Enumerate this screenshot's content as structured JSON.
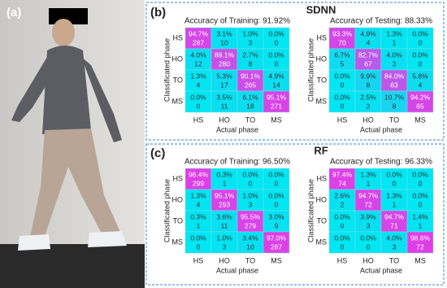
{
  "figure": {
    "panel_labels": [
      "(a)",
      "(b)",
      "(c)"
    ],
    "group_titles": [
      "SDNN",
      "RF"
    ]
  },
  "chart_data": [
    {
      "type": "heatmap",
      "title": "Accuracy of Training: 91.92%",
      "xlabel": "Actual phase",
      "ylabel": "Classificated phase",
      "x_categories": [
        "HS",
        "HO",
        "TO",
        "MS"
      ],
      "y_categories": [
        "HS",
        "HO",
        "TO",
        "MS"
      ],
      "zlim": [
        0,
        100
      ],
      "colors": [
        "#00e6f2",
        "#e23ce6"
      ],
      "values": [
        [
          94.7,
          3.1,
          1.0,
          0.0
        ],
        [
          4.0,
          88.1,
          2.7,
          0.0
        ],
        [
          1.3,
          5.3,
          90.1,
          4.9
        ],
        [
          0.0,
          3.5,
          6.1,
          95.1
        ]
      ],
      "value_labels": [
        [
          "94.7%",
          "3.1%",
          "1.0%",
          "0.0%"
        ],
        [
          "4.0%",
          "88.1%",
          "2.7%",
          "0.0%"
        ],
        [
          "1.3%",
          "5.3%",
          "90.1%",
          "4.9%"
        ],
        [
          "0.0%",
          "3.5%",
          "6.1%",
          "95.1%"
        ]
      ],
      "counts": [
        [
          287,
          10,
          3,
          0
        ],
        [
          12,
          280,
          8,
          0
        ],
        [
          4,
          17,
          265,
          14
        ],
        [
          0,
          11,
          18,
          271
        ]
      ]
    },
    {
      "type": "heatmap",
      "title": "Accuracy of Testing: 88.33%",
      "xlabel": "Actual phase",
      "ylabel": "Classificated phase",
      "x_categories": [
        "HS",
        "HO",
        "TO",
        "MS"
      ],
      "y_categories": [
        "HS",
        "HO",
        "TO",
        "MS"
      ],
      "zlim": [
        0,
        100
      ],
      "colors": [
        "#00e6f2",
        "#e23ce6"
      ],
      "values": [
        [
          93.3,
          4.9,
          1.3,
          0.0
        ],
        [
          6.7,
          82.7,
          4.0,
          0.0
        ],
        [
          0.0,
          9.9,
          84.0,
          5.8
        ],
        [
          0.0,
          2.5,
          10.7,
          94.2
        ]
      ],
      "value_labels": [
        [
          "93.3%",
          "4.9%",
          "1.3%",
          "0.0%"
        ],
        [
          "6.7%",
          "82.7%",
          "4.0%",
          "0.0%"
        ],
        [
          "0.0%",
          "9.9%",
          "84.0%",
          "5.8%"
        ],
        [
          "0.0%",
          "2.5%",
          "10.7%",
          "94.2%"
        ]
      ],
      "counts": [
        [
          70,
          4,
          1,
          0
        ],
        [
          5,
          67,
          3,
          0
        ],
        [
          0,
          8,
          63,
          4
        ],
        [
          0,
          2,
          8,
          65
        ]
      ]
    },
    {
      "type": "heatmap",
      "title": "Accuracy of Training: 96.50%",
      "xlabel": "Actual phase",
      "ylabel": "Classificated phase",
      "x_categories": [
        "HS",
        "HO",
        "TO",
        "MS"
      ],
      "y_categories": [
        "HS",
        "HO",
        "TO",
        "MS"
      ],
      "zlim": [
        0,
        100
      ],
      "colors": [
        "#00e6f2",
        "#e23ce6"
      ],
      "values": [
        [
          98.4,
          0.3,
          0.0,
          0.0
        ],
        [
          1.3,
          95.1,
          1.0,
          0.0
        ],
        [
          0.3,
          3.6,
          95.5,
          3.0
        ],
        [
          0.0,
          1.0,
          3.4,
          97.0
        ]
      ],
      "value_labels": [
        [
          "98.4%",
          "0.3%",
          "0.0%",
          "0.0%"
        ],
        [
          "1.3%",
          "95.1%",
          "1.0%",
          "0.0%"
        ],
        [
          "0.3%",
          "3.6%",
          "95.5%",
          "3.0%"
        ],
        [
          "0.0%",
          "1.0%",
          "3.4%",
          "97.0%"
        ]
      ],
      "counts": [
        [
          299,
          1,
          0,
          0
        ],
        [
          4,
          293,
          3,
          0
        ],
        [
          1,
          11,
          279,
          9
        ],
        [
          0,
          3,
          10,
          287
        ]
      ]
    },
    {
      "type": "heatmap",
      "title": "Accuracy of Testing: 96.33%",
      "xlabel": "Actual phase",
      "ylabel": "Classificated phase",
      "x_categories": [
        "HS",
        "HO",
        "TO",
        "MS"
      ],
      "y_categories": [
        "HS",
        "HO",
        "TO",
        "MS"
      ],
      "zlim": [
        0,
        100
      ],
      "colors": [
        "#00e6f2",
        "#e23ce6"
      ],
      "values": [
        [
          97.4,
          1.3,
          0.0,
          0.0
        ],
        [
          2.6,
          94.7,
          1.3,
          0.0
        ],
        [
          0.0,
          3.9,
          94.7,
          1.4
        ],
        [
          0.0,
          0.0,
          4.0,
          98.6
        ]
      ],
      "value_labels": [
        [
          "97.4%",
          "1.3%",
          "0.0%",
          "0.0%"
        ],
        [
          "2.6%",
          "94.7%",
          "1.3%",
          "0.0%"
        ],
        [
          "0.0%",
          "3.9%",
          "94.7%",
          "1.4%"
        ],
        [
          "0.0%",
          "0.0%",
          "4.0%",
          "98.6%"
        ]
      ],
      "counts": [
        [
          74,
          1,
          0,
          0
        ],
        [
          2,
          72,
          1,
          0
        ],
        [
          0,
          3,
          71,
          1
        ],
        [
          0,
          0,
          3,
          72
        ]
      ]
    }
  ]
}
